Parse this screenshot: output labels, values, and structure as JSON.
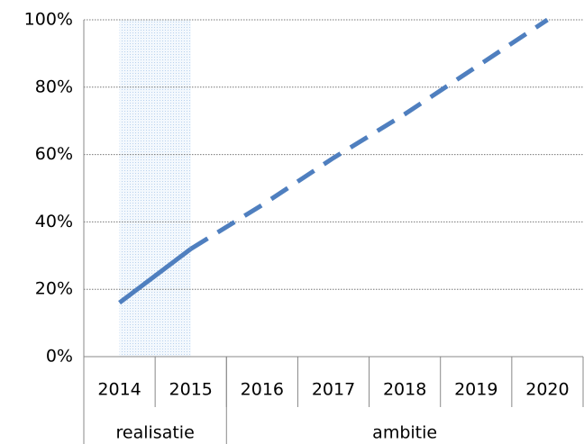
{
  "chart_data": {
    "type": "line",
    "categories": [
      "2014",
      "2015",
      "2016",
      "2017",
      "2018",
      "2019",
      "2020"
    ],
    "series": [
      {
        "name": "realisatie",
        "color": "#4f7fbf",
        "dashed": false,
        "shaded": true,
        "values": [
          16,
          32,
          null,
          null,
          null,
          null,
          null
        ]
      },
      {
        "name": "ambitie",
        "color": "#4f7fbf",
        "dashed": true,
        "shaded": false,
        "values": [
          null,
          null,
          45,
          59,
          72,
          86,
          100
        ]
      }
    ],
    "ylim": [
      0,
      100
    ],
    "yticks": [
      {
        "value": 0,
        "label": "0%"
      },
      {
        "value": 20,
        "label": "20%"
      },
      {
        "value": 40,
        "label": "40%"
      },
      {
        "value": 60,
        "label": "60%"
      },
      {
        "value": 80,
        "label": "80%"
      },
      {
        "value": 100,
        "label": "100%"
      }
    ],
    "grid": true
  }
}
